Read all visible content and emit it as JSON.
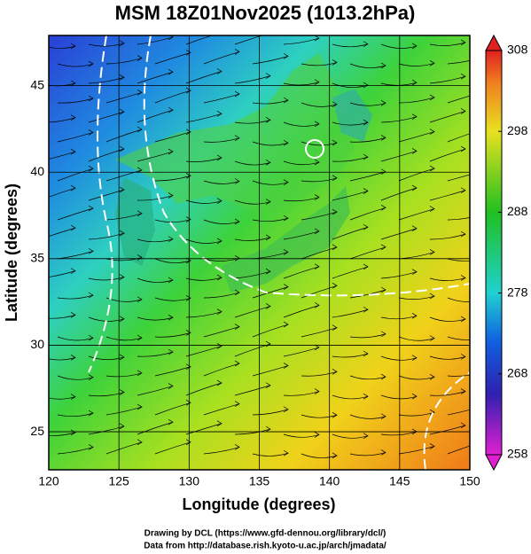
{
  "title": "MSM 18Z01Nov2025 (1013.2hPa)",
  "map": {
    "xlabel": "Longitude (degrees)",
    "ylabel": "Latitude  (degrees)",
    "xlim": [
      120,
      150
    ],
    "ylim": [
      22.8,
      47.9
    ],
    "xticks": [
      120,
      125,
      130,
      135,
      140,
      145,
      150
    ],
    "yticks": [
      25,
      30,
      35,
      40,
      45
    ]
  },
  "colorbar": {
    "lim": [
      258,
      308
    ],
    "ticks": [
      258,
      268,
      278,
      288,
      298,
      308
    ]
  },
  "footer": [
    "Drawing by DCL (https://www.gfd-dennou.org/library/dcl/)",
    "Data from http://database.rish.kyoto-u.ac.jp/arch/jmadata/"
  ]
}
